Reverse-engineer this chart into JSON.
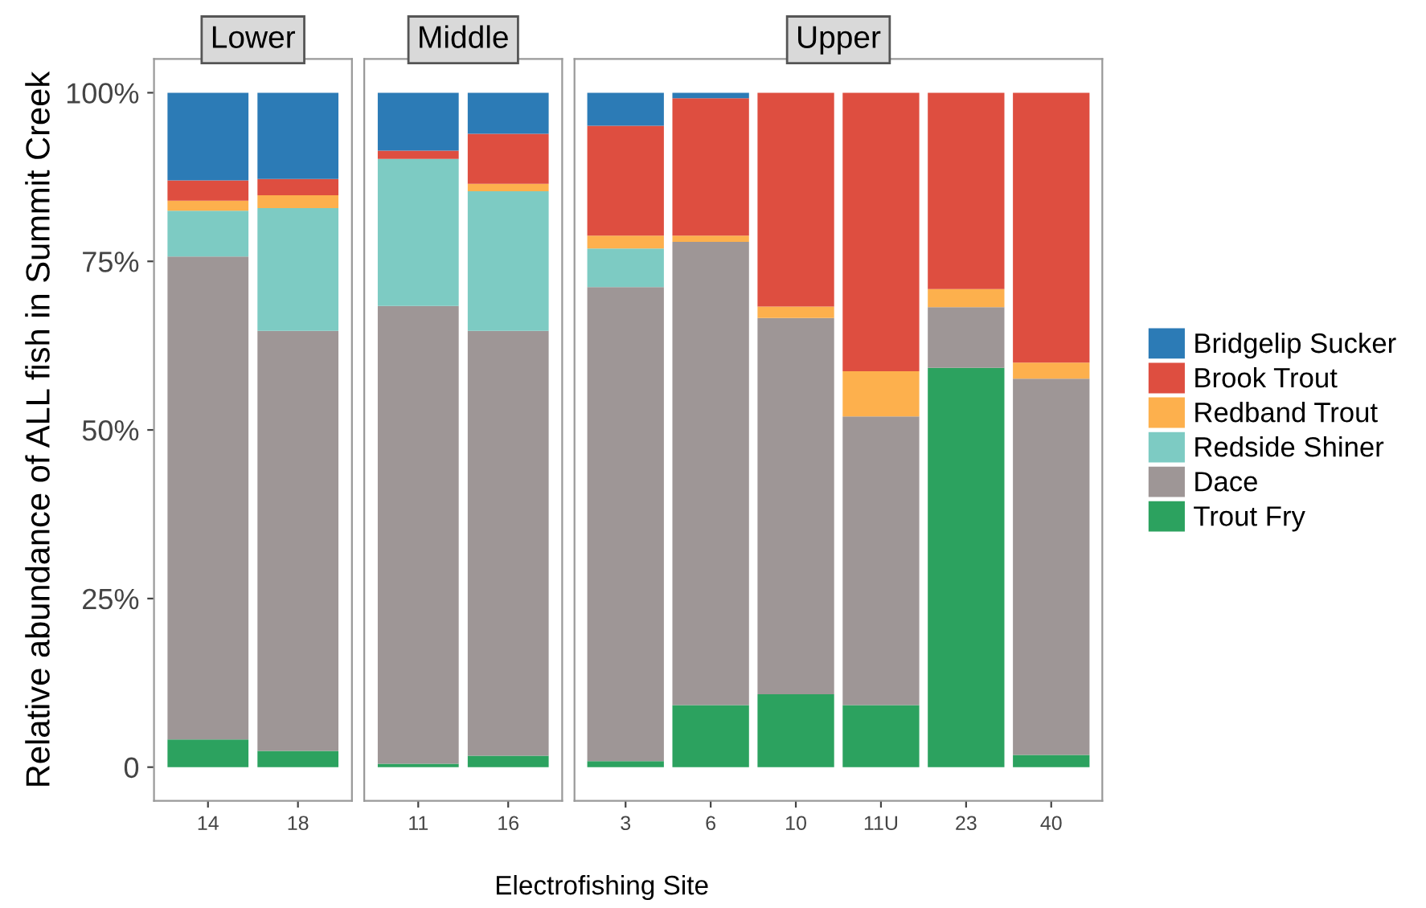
{
  "chart_data": [
    {
      "type": "bar",
      "stacked": true,
      "title": "Lower",
      "ylabel": "Relative abundance of ALL fish in Summit Creek",
      "categories": [
        "14",
        "18"
      ],
      "ylim": [
        -5,
        105
      ],
      "yticks": [
        {
          "value": 0,
          "label": "0"
        },
        {
          "value": 25,
          "label": "25%"
        },
        {
          "value": 50,
          "label": "50%"
        },
        {
          "value": 75,
          "label": "75%"
        },
        {
          "value": 100,
          "label": "100%"
        }
      ],
      "grid": false,
      "series": [
        {
          "color": "#2ca25f",
          "values": [
            4.1,
            2.4
          ]
        },
        {
          "color": "#9e9696",
          "values": [
            71.6,
            62.3
          ]
        },
        {
          "color": "#7dcbc3",
          "values": [
            6.8,
            18.2
          ]
        },
        {
          "color": "#fdb04d",
          "values": [
            1.5,
            1.9
          ]
        },
        {
          "color": "#de4e40",
          "values": [
            3.0,
            2.4
          ]
        },
        {
          "color": "#2c7bb6",
          "values": [
            13.0,
            12.8
          ]
        }
      ]
    },
    {
      "type": "bar",
      "stacked": true,
      "title": "Middle",
      "xlabel": "Electrofishing Site",
      "categories": [
        "11",
        "16"
      ],
      "ylim": [
        -5,
        105
      ],
      "tick_labels": "x",
      "grid": false,
      "series": [
        {
          "color": "#2ca25f",
          "values": [
            0.5,
            1.7
          ]
        },
        {
          "color": "#9e9696",
          "values": [
            67.9,
            63.0
          ]
        },
        {
          "color": "#7dcbc3",
          "values": [
            21.8,
            20.7
          ]
        },
        {
          "color": "#fdb04d",
          "values": [
            0,
            1.1
          ]
        },
        {
          "color": "#de4e40",
          "values": [
            1.2,
            7.4
          ]
        },
        {
          "color": "#2c7bb6",
          "values": [
            8.6,
            6.1
          ]
        }
      ]
    },
    {
      "type": "bar",
      "stacked": true,
      "title": "Upper",
      "categories": [
        "3",
        "6",
        "10",
        "11U",
        "23",
        "40"
      ],
      "ylim": [
        -5,
        105
      ],
      "tick_labels": "x",
      "grid": false,
      "legend": "right",
      "series": [
        {
          "name": "Trout Fry",
          "color": "#2ca25f",
          "values": [
            0.9,
            9.2,
            10.8,
            9.2,
            59.2,
            1.8
          ]
        },
        {
          "name": "Dace",
          "color": "#9e9696",
          "values": [
            70.3,
            68.7,
            55.8,
            42.8,
            9.0,
            55.8
          ]
        },
        {
          "name": "Redside Shiner",
          "color": "#7dcbc3",
          "values": [
            5.7,
            0,
            0,
            0,
            0,
            0
          ]
        },
        {
          "name": "Redband Trout",
          "color": "#fdb04d",
          "values": [
            1.9,
            0.9,
            1.7,
            6.7,
            2.7,
            2.4
          ]
        },
        {
          "name": "Brook Trout",
          "color": "#de4e40",
          "values": [
            16.3,
            20.4,
            31.7,
            41.3,
            29.1,
            40.0
          ]
        },
        {
          "name": "Bridgelip Sucker",
          "color": "#2c7bb6",
          "values": [
            4.9,
            0.8,
            0,
            0,
            0,
            0
          ]
        }
      ]
    }
  ]
}
